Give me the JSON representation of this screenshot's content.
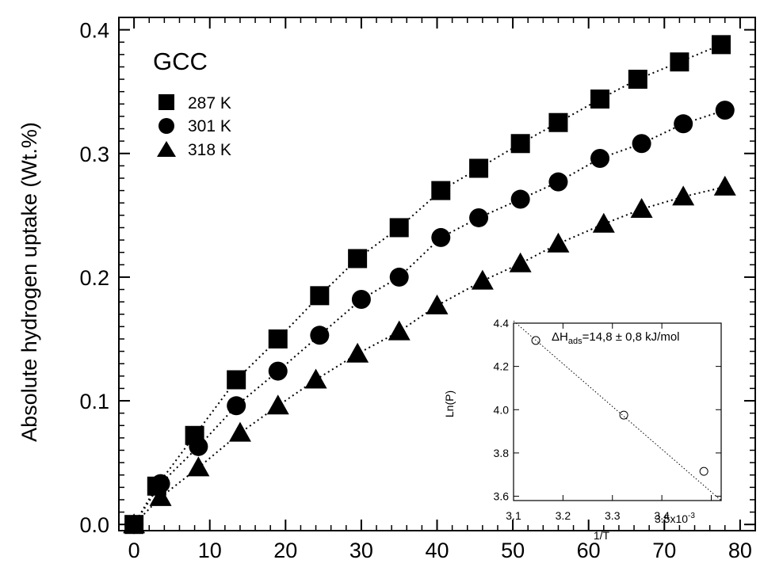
{
  "colors": {
    "marker": "#000000",
    "background": "#ffffff"
  },
  "chart_data": [
    {
      "type": "scatter",
      "title": "GCC",
      "xlabel": "",
      "ylabel": "Absolute hydrogen uptake (Wt.%)",
      "xlim": [
        -2,
        82
      ],
      "ylim": [
        -0.005,
        0.41
      ],
      "xticks": [
        0,
        10,
        20,
        30,
        40,
        50,
        60,
        70,
        80
      ],
      "yticks": [
        0.0,
        0.1,
        0.2,
        0.3,
        0.4
      ],
      "ytick_labels": [
        "0.0",
        "0.1",
        "0.2",
        "0.3",
        "0.4"
      ],
      "legend_position": "top-left",
      "fit_lines": "dotted",
      "series": [
        {
          "name": "287 K",
          "marker": "square",
          "x": [
            0,
            3,
            8,
            13.5,
            19,
            24.5,
            29.5,
            35,
            40.5,
            45.5,
            51,
            56,
            61.5,
            66.5,
            72,
            77.5
          ],
          "y": [
            0.0,
            0.031,
            0.072,
            0.117,
            0.15,
            0.185,
            0.215,
            0.24,
            0.27,
            0.288,
            0.308,
            0.325,
            0.344,
            0.36,
            0.374,
            0.388
          ]
        },
        {
          "name": "301 K",
          "marker": "circle",
          "x": [
            0,
            3.5,
            8.5,
            13.5,
            19,
            24.5,
            30,
            35,
            40.5,
            45.5,
            51,
            56,
            61.5,
            67,
            72.5,
            78
          ],
          "y": [
            0.0,
            0.033,
            0.063,
            0.096,
            0.124,
            0.153,
            0.182,
            0.2,
            0.232,
            0.248,
            0.263,
            0.277,
            0.296,
            0.308,
            0.324,
            0.335
          ]
        },
        {
          "name": "318 K",
          "marker": "triangle",
          "x": [
            0,
            3.5,
            8.5,
            14,
            19,
            24,
            29.5,
            35,
            40,
            46,
            51,
            56,
            62,
            67,
            72.5,
            78
          ],
          "y": [
            0.0,
            0.022,
            0.046,
            0.074,
            0.096,
            0.117,
            0.138,
            0.156,
            0.177,
            0.197,
            0.211,
            0.227,
            0.243,
            0.255,
            0.265,
            0.273
          ]
        }
      ]
    },
    {
      "type": "scatter",
      "title": "",
      "xlabel": "1/T",
      "ylabel": "Ln(P)",
      "xlim": [
        3.1,
        3.52
      ],
      "ylim": [
        3.58,
        4.4
      ],
      "xticks": [
        3.1,
        3.2,
        3.3,
        3.4
      ],
      "xtick_labels": [
        "3.1",
        "3.2",
        "3.3",
        "3.4"
      ],
      "xtick_extra": "3.5x10",
      "xtick_extra_exponent": "-3",
      "yticks": [
        3.6,
        3.8,
        4.0,
        4.2,
        4.4
      ],
      "ytick_labels": [
        "3.6",
        "3.8",
        "4.0",
        "4.2",
        "4.4"
      ],
      "annotation_prefix": "ΔH",
      "annotation_sub": "ads",
      "annotation_suffix": "=14,8 ± 0,8 kJ/mol",
      "marker": "open-circle",
      "points": {
        "x": [
          3.145,
          3.323,
          3.485
        ],
        "y": [
          4.32,
          3.975,
          3.715
        ]
      },
      "fit_line": {
        "x": [
          3.1,
          3.52
        ],
        "y": [
          4.41,
          3.58
        ]
      }
    }
  ]
}
